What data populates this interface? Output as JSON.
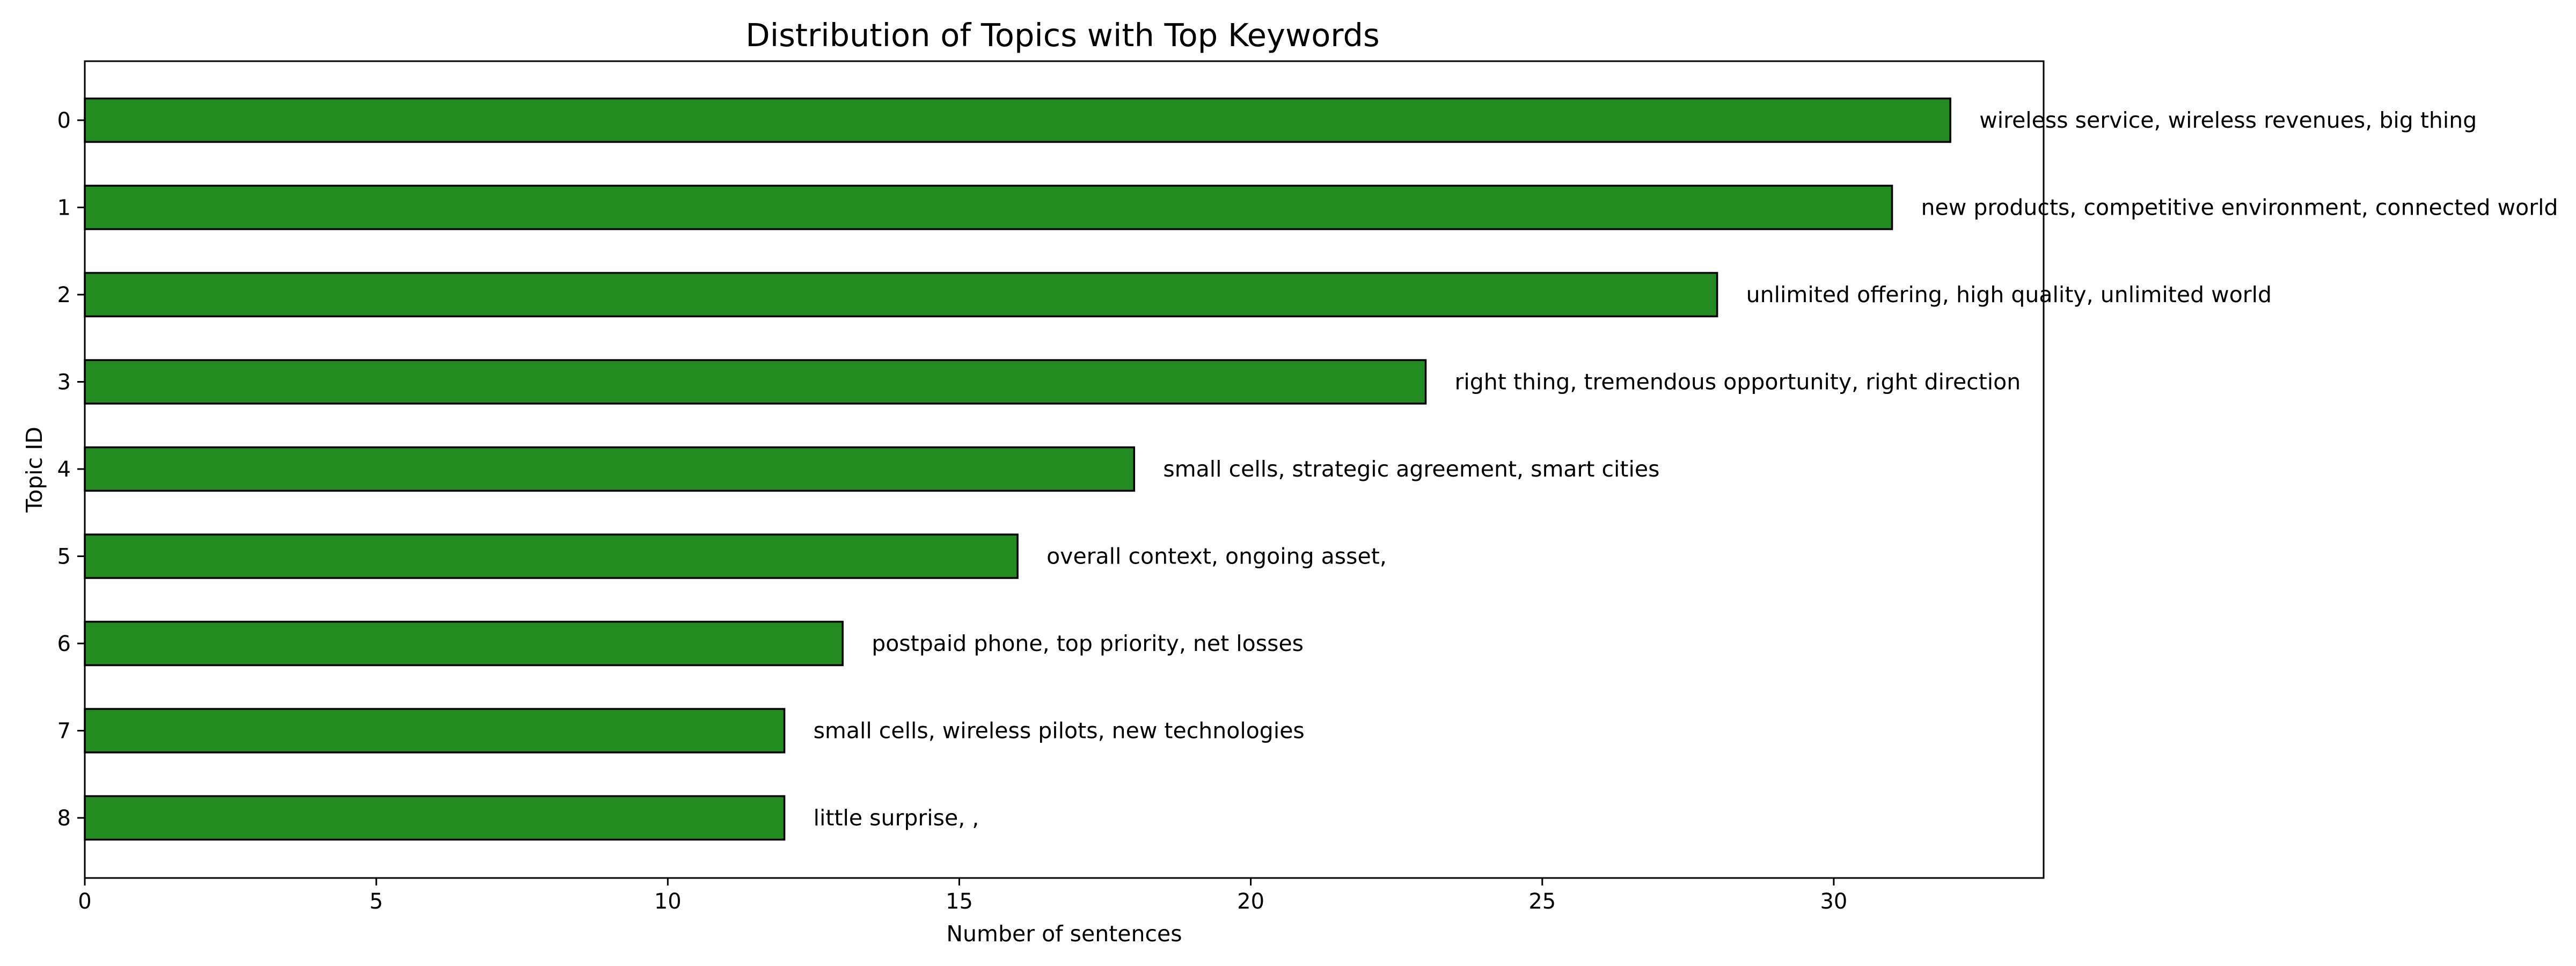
{
  "chart_data": {
    "type": "bar",
    "orientation": "horizontal",
    "title": "Distribution of Topics with Top Keywords",
    "xlabel": "Number of sentences",
    "ylabel": "Topic ID",
    "categories": [
      "0",
      "1",
      "2",
      "3",
      "4",
      "5",
      "6",
      "7",
      "8"
    ],
    "values": [
      32,
      31,
      28,
      23,
      18,
      16,
      13,
      12,
      12
    ],
    "bar_labels": [
      "wireless service, wireless revenues, big thing",
      "new products, competitive environment, connected world",
      "unlimited offering, high quality, unlimited world",
      "right thing, tremendous opportunity, right direction",
      "small cells, strategic agreement, smart cities",
      "overall context, ongoing asset,",
      "postpaid phone, top priority, net losses",
      "small cells, wireless pilots, new technologies",
      "little surprise, ,"
    ],
    "xlim": [
      0,
      33.6
    ],
    "xticks": [
      0,
      5,
      10,
      15,
      20,
      25,
      30
    ],
    "xtick_labels": [
      "0",
      "5",
      "10",
      "15",
      "20",
      "25",
      "30"
    ],
    "bar_color": "#228b22",
    "edge_color": "#000000",
    "grid": false,
    "legend": "none"
  }
}
